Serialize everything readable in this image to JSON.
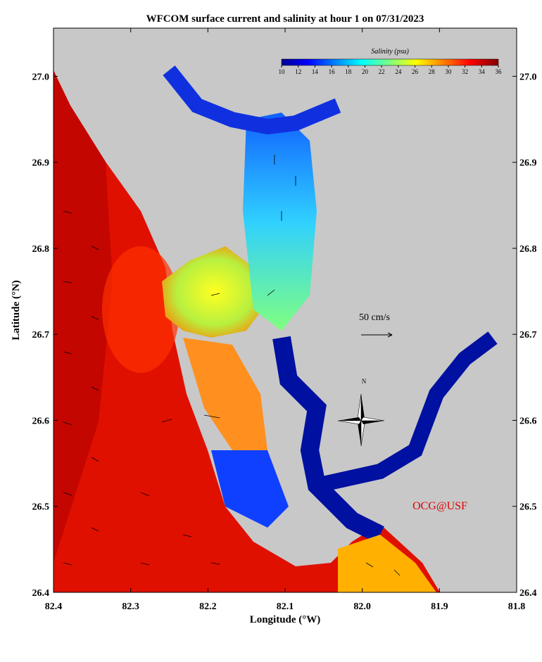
{
  "title": "WFCOM surface current and salinity at hour 1 on 07/31/2023",
  "x_axis": {
    "label": "Longitude (°W)",
    "lim": [
      82.4,
      81.8
    ],
    "ticks": [
      82.4,
      82.3,
      82.2,
      82.1,
      82.0,
      81.9,
      81.8
    ]
  },
  "y_axis": {
    "label": "Latitude (°N)",
    "lim": [
      26.4,
      27.056
    ],
    "ticks": [
      26.4,
      26.5,
      26.6,
      26.7,
      26.8,
      26.9,
      27.0
    ]
  },
  "colorbar": {
    "label": "Salinity (psu)",
    "lim": [
      10,
      36
    ],
    "ticks": [
      10,
      12,
      14,
      16,
      18,
      20,
      22,
      24,
      26,
      28,
      30,
      32,
      34,
      36
    ]
  },
  "scale_label": "50 cm/s",
  "compass_label": "N",
  "credit": "OCG@USF"
}
